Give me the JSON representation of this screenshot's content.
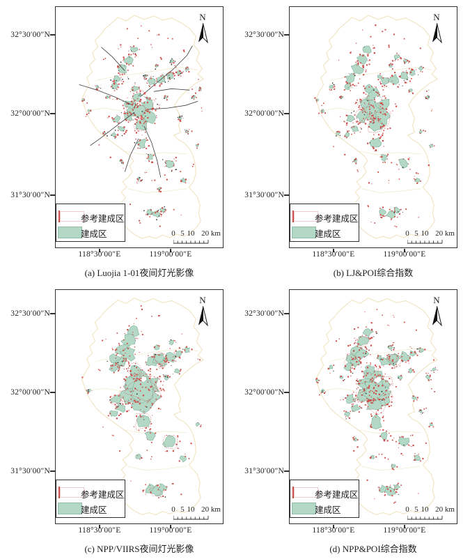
{
  "figure": {
    "title": "built-up area extraction comparison maps",
    "panels": [
      {
        "caption": "(a) Luojia 1-01夜间灯光影像"
      },
      {
        "caption": "(b) LJ&POI综合指数"
      },
      {
        "caption": "(c) NPP/VIIRS夜间灯光影像"
      },
      {
        "caption": "(d) NPP&POI综合指数"
      }
    ],
    "north_label": "N",
    "lat_labels": [
      "32°30′00″N",
      "32°00′00″N",
      "31°30′00″N"
    ],
    "lon_labels": [
      "118°30′00″E",
      "119°00′00″E"
    ],
    "legend": {
      "reference_label": "参考建成区",
      "builtup_label": "建成区"
    },
    "scale_bar": {
      "labels": [
        "0",
        "5",
        "10",
        "20 km"
      ]
    },
    "colors": {
      "builtup_fill": "#b3d9c6",
      "builtup_stroke": "#7fae9b",
      "reference_red": "#cd4f4a",
      "boundary_tan": "#efe3c0",
      "frame_dark": "#2f2f2f",
      "dark_speckle": "#333333"
    }
  }
}
